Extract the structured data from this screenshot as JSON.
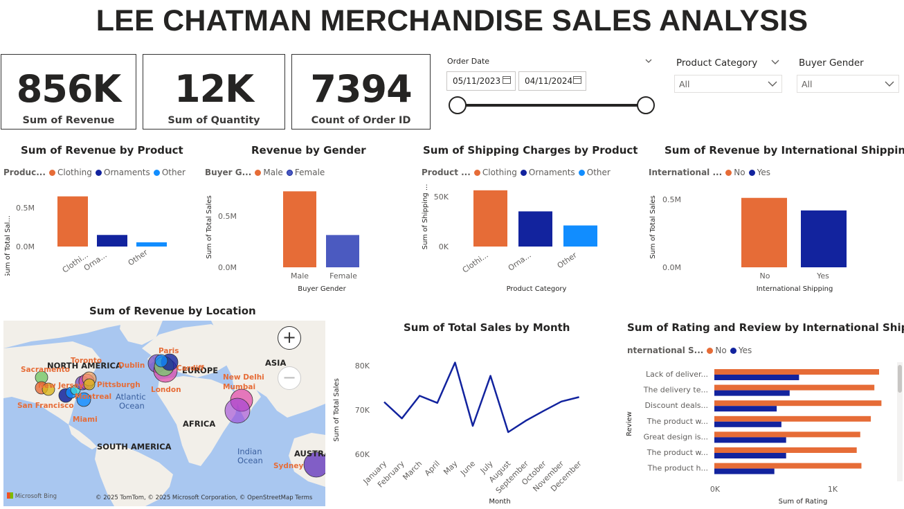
{
  "title": "LEE CHATMAN MERCHANDISE SALES ANALYSIS",
  "kpis": [
    {
      "value": "856K",
      "label": "Sum of Revenue"
    },
    {
      "value": "12K",
      "label": "Sum of Quantity"
    },
    {
      "value": "7394",
      "label": "Count of Order ID"
    }
  ],
  "filters": {
    "order_date": {
      "label": "Order Date",
      "start": "05/11/2023",
      "end": "04/11/2024"
    },
    "product_category": {
      "label": "Product Category",
      "value": "All"
    },
    "buyer_gender": {
      "label": "Buyer Gender",
      "value": "All"
    }
  },
  "colors": {
    "orange": "#e66c37",
    "navy": "#12239e",
    "blue": "#118dff",
    "indigo": "#4b5ac0"
  },
  "charts": {
    "revenue_by_product": {
      "title": "Sum of Revenue by Product",
      "legend_title": "Produc...",
      "legend": [
        "Clothing",
        "Ornaments",
        "Other"
      ],
      "ylabel": "Sum of Total Sal...",
      "yticks": [
        "0.5M",
        "0.0M"
      ],
      "xticks": [
        "Clothi...",
        "Orna...",
        "Other"
      ]
    },
    "revenue_by_gender": {
      "title": "Revenue by Gender",
      "legend_title": "Buyer G...",
      "legend": [
        "Male",
        "Female"
      ],
      "ylabel": "Sum of Total Sales",
      "yticks": [
        "0.5M",
        "0.0M"
      ],
      "xticks": [
        "Male",
        "Female"
      ],
      "xlabel": "Buyer Gender"
    },
    "shipping_by_product": {
      "title": "Sum of Shipping Charges by Product",
      "legend_title": "Product ...",
      "legend": [
        "Clothing",
        "Ornaments",
        "Other"
      ],
      "ylabel": "Sum of Shipping ...",
      "yticks": [
        "50K",
        "0K"
      ],
      "xticks": [
        "Clothi...",
        "Orna...",
        "Other"
      ],
      "xlabel": "Product Category"
    },
    "revenue_by_intl": {
      "title": "Sum of Revenue by International Shipping",
      "legend_title": "International ...",
      "legend": [
        "No",
        "Yes"
      ],
      "ylabel": "Sum of Total Sales",
      "yticks": [
        "0.5M",
        "0.0M"
      ],
      "xticks": [
        "No",
        "Yes"
      ],
      "xlabel": "International Shipping"
    },
    "map": {
      "title": "Sum of Revenue by Location",
      "labels": {
        "north_america": "NORTH AMERICA",
        "europe": "EUROPE",
        "asia": "ASIA",
        "africa": "AFRICA",
        "south_america": "SOUTH AMERICA",
        "atlantic": "Atlantic",
        "atlantic2": "Ocean",
        "indian": "Indian",
        "indian2": "Ocean",
        "australia": "AUSTRA"
      },
      "cities": {
        "toronto": "Toronto",
        "sacramento": "Sacramento",
        "new_jersey": "New Jersey",
        "pittsburgh": "Pittsburgh",
        "san_francisco": "San Francisco",
        "montreal": "Montreal",
        "miami": "Miami",
        "dublin": "Dublin",
        "paris": "Paris",
        "cardiff": "Cardiff",
        "london": "London",
        "new_delhi": "New Delhi",
        "mumbai": "Mumbai",
        "sydney": "Sydney"
      },
      "attribution": "© 2025 TomTom, © 2025 Microsoft Corporation, © OpenStreetMap  Terms",
      "brand": "Microsoft Bing"
    },
    "sales_by_month": {
      "title": "Sum of Total Sales by Month",
      "ylabel": "Sum of Total Sales",
      "xlabel": "Month",
      "yticks": [
        "80K",
        "70K",
        "60K"
      ]
    },
    "rating_by_review": {
      "title": "Sum of Rating and Review by International Shipping",
      "legend_title": "nternational S...",
      "legend": [
        "No",
        "Yes"
      ],
      "ylabel": "Review",
      "xlabel": "Sum of Rating",
      "xticks": [
        "0K",
        "1K"
      ]
    }
  },
  "chart_data": [
    {
      "type": "bar",
      "title": "Sum of Revenue by Product",
      "categories": [
        "Clothing",
        "Ornaments",
        "Other"
      ],
      "values": [
        650000,
        150000,
        55000
      ],
      "ylim": [
        0,
        700000
      ],
      "series_colors": [
        "#e66c37",
        "#12239e",
        "#118dff"
      ]
    },
    {
      "type": "bar",
      "title": "Revenue by Gender",
      "categories": [
        "Male",
        "Female"
      ],
      "values": [
        600000,
        255000
      ],
      "ylim": [
        0,
        700000
      ],
      "series_colors": [
        "#e66c37",
        "#4b5ac0"
      ]
    },
    {
      "type": "bar",
      "title": "Sum of Shipping Charges by Product",
      "categories": [
        "Clothing",
        "Ornaments",
        "Other"
      ],
      "values": [
        56000,
        35000,
        21000
      ],
      "ylim": [
        0,
        60000
      ],
      "series_colors": [
        "#e66c37",
        "#12239e",
        "#118dff"
      ]
    },
    {
      "type": "bar",
      "title": "Sum of Revenue by International Shipping",
      "categories": [
        "No",
        "Yes"
      ],
      "values": [
        470000,
        385000
      ],
      "ylim": [
        0,
        600000
      ],
      "series_colors": [
        "#e66c37",
        "#12239e"
      ]
    },
    {
      "type": "line",
      "title": "Sum of Total Sales by Month",
      "categories": [
        "January",
        "February",
        "March",
        "April",
        "May",
        "June",
        "July",
        "August",
        "September",
        "October",
        "November",
        "December"
      ],
      "values": [
        71800,
        68100,
        73200,
        71600,
        80700,
        66400,
        77700,
        65000,
        67600,
        69800,
        71900,
        72900
      ],
      "ylim": [
        60000,
        83000
      ],
      "xlabel": "Month",
      "ylabel": "Sum of Total Sales"
    },
    {
      "type": "bar",
      "orientation": "horizontal",
      "title": "Sum of Rating and Review by International Shipping",
      "categories": [
        "Lack of deliver...",
        "The delivery te...",
        "Discount deals...",
        "The product w...",
        "Great design is...",
        "The product w...",
        "The product h..."
      ],
      "series": [
        {
          "name": "No",
          "values": [
            1400,
            1360,
            1420,
            1330,
            1240,
            1210,
            1250
          ]
        },
        {
          "name": "Yes",
          "values": [
            720,
            640,
            530,
            570,
            610,
            610,
            510
          ]
        }
      ],
      "xlim": [
        0,
        1500
      ],
      "xlabel": "Sum of Rating",
      "ylabel": "Review"
    }
  ]
}
